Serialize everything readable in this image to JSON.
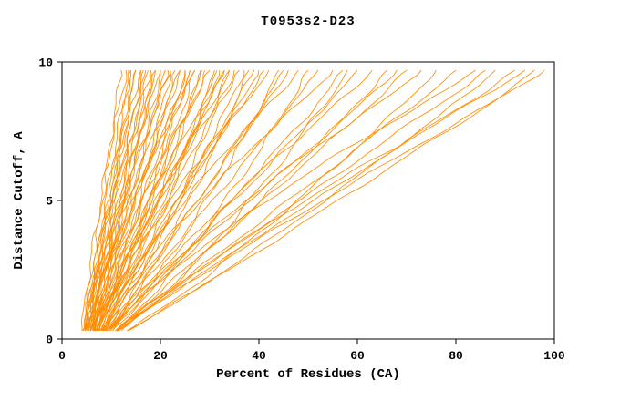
{
  "page": {
    "background": "#ffffff"
  },
  "chart_data": {
    "type": "line",
    "title": "T0953s2-D23",
    "xlabel": "Percent of Residues (CA)",
    "ylabel": "Distance Cutoff, A",
    "xlim": [
      0,
      100
    ],
    "ylim": [
      0,
      10
    ],
    "x_ticks": [
      0,
      20,
      40,
      60,
      80,
      100
    ],
    "y_ticks": [
      0,
      5,
      10
    ],
    "grid": false,
    "legend": "none",
    "line_color": "#ff8c00",
    "axis_color": "#000000",
    "description": "Per-model distance-cutoff curves: x = percent of CA residues within distance cutoff y",
    "y_levels": [
      0.3,
      1,
      2,
      3,
      4,
      5,
      6,
      7,
      8,
      9,
      9.7
    ],
    "curves": [
      [
        4.2,
        4.8,
        5.7,
        6.5,
        7.4,
        8.2,
        9.0,
        9.8,
        10.6,
        11.5,
        12
      ],
      [
        4.1,
        4.5,
        5.2,
        6.0,
        6.9,
        7.9,
        8.9,
        9.9,
        11.1,
        12.3,
        13
      ],
      [
        5.5,
        6.4,
        7.6,
        8.5,
        9.5,
        10.3,
        11.2,
        12.0,
        12.8,
        13.6,
        14
      ],
      [
        4.8,
        5.6,
        6.7,
        7.8,
        8.9,
        10.0,
        11.1,
        12.2,
        13.2,
        14.4,
        15
      ],
      [
        5.1,
        5.6,
        6.4,
        7.4,
        8.5,
        9.7,
        10.9,
        12.3,
        13.7,
        15.1,
        16
      ],
      [
        4.7,
        5.9,
        7.5,
        8.7,
        10.0,
        11.1,
        12.3,
        13.4,
        14.3,
        15.4,
        16
      ],
      [
        5.8,
        6.7,
        7.9,
        9.1,
        10.3,
        11.5,
        12.7,
        13.9,
        15.1,
        16.3,
        17
      ],
      [
        4.6,
        5.2,
        6.3,
        7.5,
        8.8,
        10.3,
        11.8,
        13.4,
        15.2,
        16.9,
        18
      ],
      [
        5.8,
        7.1,
        8.8,
        10.1,
        11.5,
        12.7,
        14.0,
        15.1,
        16.2,
        17.4,
        18
      ],
      [
        6.4,
        7.3,
        8.7,
        10.0,
        11.5,
        12.8,
        14.2,
        15.5,
        16.8,
        18.2,
        19
      ],
      [
        5.2,
        5.8,
        7.0,
        8.3,
        9.8,
        11.5,
        13.1,
        14.9,
        16.9,
        18.8,
        20
      ],
      [
        6.4,
        7.8,
        9.7,
        11.2,
        12.8,
        14.1,
        15.5,
        16.8,
        18.0,
        19.3,
        20
      ],
      [
        6.5,
        7.5,
        9.2,
        10.7,
        12.3,
        13.8,
        15.5,
        17.0,
        18.5,
        20.1,
        21
      ],
      [
        5.2,
        5.9,
        7.2,
        8.7,
        10.4,
        12.3,
        14.2,
        16.2,
        18.4,
        20.6,
        22
      ],
      [
        7.5,
        9.0,
        11.0,
        12.6,
        14.3,
        15.6,
        17.2,
        18.6,
        19.8,
        21.2,
        22
      ],
      [
        6.5,
        7.7,
        9.6,
        11.3,
        13.1,
        14.8,
        16.7,
        18.4,
        20.1,
        22.0,
        23
      ],
      [
        5.7,
        6.4,
        7.9,
        9.6,
        11.4,
        13.5,
        15.5,
        17.7,
        20.1,
        22.5,
        24
      ],
      [
        8.1,
        9.9,
        12.2,
        14.0,
        16.0,
        17.6,
        19.4,
        21.0,
        22.5,
        24.1,
        25
      ],
      [
        6.6,
        8.0,
        10.2,
        12.2,
        14.4,
        16.4,
        18.6,
        20.6,
        22.6,
        24.8,
        26
      ],
      [
        5.2,
        6.1,
        7.9,
        9.8,
        12.0,
        14.5,
        16.9,
        19.5,
        22.4,
        25.2,
        27
      ],
      [
        8.3,
        10.4,
        13.1,
        15.2,
        17.5,
        19.4,
        21.5,
        23.4,
        25.1,
        27.0,
        28
      ],
      [
        7.2,
        8.8,
        11.2,
        13.5,
        15.9,
        18.2,
        20.7,
        22.9,
        25.2,
        27.7,
        29
      ],
      [
        6.2,
        7.2,
        9.1,
        11.3,
        13.7,
        16.3,
        19.0,
        21.8,
        25.0,
        28.1,
        30
      ],
      [
        8.9,
        11.3,
        14.3,
        16.7,
        19.3,
        21.4,
        23.7,
        25.8,
        27.7,
        29.8,
        31
      ],
      [
        6.8,
        8.6,
        11.5,
        14.1,
        16.9,
        19.5,
        22.4,
        25.0,
        27.6,
        30.4,
        32
      ],
      [
        6.8,
        7.8,
        9.9,
        12.3,
        15.0,
        17.9,
        20.8,
        24.0,
        27.4,
        30.9,
        33
      ],
      [
        9.6,
        12.2,
        15.5,
        18.1,
        21.0,
        23.3,
        25.9,
        28.3,
        30.4,
        32.7,
        34
      ],
      [
        6.9,
        8.9,
        12.1,
        15.0,
        18.2,
        21.1,
        24.3,
        27.2,
        30.1,
        33.3,
        35
      ],
      [
        7.3,
        8.5,
        10.8,
        13.4,
        16.3,
        19.5,
        22.7,
        26.1,
        29.9,
        33.7,
        36
      ],
      [
        9.9,
        12.8,
        16.7,
        19.7,
        23.0,
        25.7,
        28.7,
        31.4,
        33.8,
        36.5,
        38
      ],
      [
        7.5,
        9.9,
        13.5,
        16.9,
        20.6,
        23.9,
        27.6,
        31.0,
        34.3,
        38.0,
        40
      ],
      [
        7.4,
        8.8,
        11.6,
        14.7,
        18.2,
        22.1,
        25.9,
        30.1,
        34.7,
        39.2,
        42
      ],
      [
        10.3,
        13.8,
        18.4,
        22.0,
        26.0,
        29.2,
        32.8,
        36.1,
        39.0,
        42.2,
        44
      ],
      [
        8.2,
        10.9,
        15.2,
        19.1,
        23.4,
        27.3,
        31.6,
        35.5,
        39.4,
        43.7,
        46
      ],
      [
        7.9,
        9.5,
        12.8,
        16.4,
        20.5,
        24.9,
        29.4,
        34.2,
        39.5,
        44.8,
        48
      ],
      [
        11.1,
        15.1,
        20.4,
        24.7,
        29.3,
        33.0,
        37.1,
        40.9,
        44.2,
        47.9,
        50
      ],
      [
        8.4,
        11.5,
        16.5,
        21.0,
        25.9,
        30.4,
        35.4,
        39.9,
        44.4,
        49.3,
        52
      ],
      [
        8.5,
        10.4,
        14.1,
        18.3,
        23.0,
        28.2,
        33.4,
        39.0,
        45.1,
        51.2,
        55
      ],
      [
        12.1,
        16.8,
        23.2,
        28.3,
        33.5,
        37.9,
        42.8,
        47.2,
        51.1,
        55.6,
        58
      ],
      [
        9.1,
        12.8,
        18.5,
        23.8,
        29.4,
        34.8,
        40.6,
        45.8,
        51.1,
        56.9,
        60
      ],
      [
        9.1,
        12.1,
        17.4,
        22.6,
        28.4,
        33.9,
        39.9,
        46.5,
        52.6,
        59.2,
        63
      ],
      [
        11.1,
        16.0,
        22.6,
        28.6,
        34.7,
        40.4,
        46.2,
        51.6,
        57.4,
        62.6,
        66
      ],
      [
        10.8,
        15.3,
        21.7,
        28.1,
        34.4,
        40.8,
        47.1,
        53.5,
        59.8,
        66.2,
        70
      ],
      [
        9.0,
        12.2,
        18.1,
        23.9,
        30.8,
        37.3,
        44.4,
        52.2,
        60.0,
        68.5,
        73
      ],
      [
        13.2,
        19.5,
        27.5,
        34.1,
        41.4,
        47.7,
        54.1,
        60.4,
        66.4,
        72.3,
        76
      ],
      [
        11.1,
        16.4,
        23.9,
        31.0,
        38.6,
        45.9,
        53.7,
        60.8,
        67.9,
        75.7,
        80
      ],
      [
        9.5,
        12.9,
        19.4,
        25.9,
        33.8,
        41.7,
        50.0,
        59.1,
        68.5,
        78.3,
        84
      ],
      [
        13.5,
        20.1,
        29.1,
        37.3,
        45.5,
        53.3,
        61.1,
        68.5,
        76.3,
        83.3,
        88
      ],
      [
        11.2,
        16.9,
        25.2,
        33.9,
        42.2,
        51.3,
        60.0,
        68.8,
        77.5,
        86.6,
        92
      ],
      [
        13.2,
        19.9,
        29.4,
        38.4,
        47.4,
        56.0,
        65.0,
        73.6,
        82.7,
        91.3,
        96
      ],
      [
        11.4,
        17.0,
        25.4,
        34.3,
        43.6,
        52.9,
        62.6,
        72.3,
        82.1,
        91.8,
        98
      ],
      [
        4.7,
        5.3,
        6.1,
        7.0,
        8.0,
        8.9,
        9.9,
        10.9,
        11.9,
        12.9,
        13.5
      ],
      [
        5.2,
        5.7,
        6.6,
        7.5,
        8.5,
        9.5,
        10.6,
        11.8,
        13.0,
        14.3,
        15
      ],
      [
        5.8,
        6.6,
        7.9,
        9.3,
        10.7,
        12.1,
        13.6,
        15.1,
        16.6,
        18.1,
        19
      ],
      [
        6.4,
        7.5,
        9.2,
        11.0,
        12.9,
        14.8,
        16.8,
        18.8,
        20.8,
        22.7,
        24
      ],
      [
        7.4,
        9.2,
        11.5,
        13.7,
        15.8,
        17.9,
        19.9,
        21.9,
        23.9,
        25.8,
        27
      ],
      [
        7.6,
        9.2,
        11.7,
        14.3,
        17.0,
        19.7,
        22.6,
        25.5,
        28.3,
        31.2,
        33
      ],
      [
        8.8,
        11.3,
        14.7,
        17.8,
        20.9,
        23.9,
        26.8,
        29.6,
        32.6,
        35.2,
        37
      ],
      [
        8.7,
        10.5,
        13.6,
        16.7,
        20.2,
        23.5,
        27.1,
        31.1,
        34.7,
        38.7,
        41
      ],
      [
        9.6,
        12.3,
        16.2,
        19.8,
        23.7,
        27.5,
        31.5,
        35.1,
        38.9,
        42.8,
        45
      ],
      [
        4.3,
        5.0,
        6.1,
        7.1,
        8.2,
        9.2,
        10.3,
        11.3,
        12.3,
        13.4,
        14
      ],
      [
        4.8,
        5.6,
        6.8,
        8.0,
        9.2,
        10.5,
        11.8,
        13.1,
        14.5,
        15.7,
        16.5
      ],
      [
        5.7,
        6.9,
        8.4,
        9.6,
        11.0,
        12.2,
        13.4,
        14.6,
        15.7,
        16.8,
        17.5
      ],
      [
        5.8,
        6.5,
        8.0,
        9.4,
        11.1,
        12.7,
        14.5,
        16.4,
        18.3,
        20.4,
        21.5
      ],
      [
        6.7,
        8.2,
        10.3,
        12.3,
        14.3,
        16.2,
        18.2,
        20.1,
        22.1,
        24.0,
        25
      ],
      [
        7.1,
        8.6,
        10.8,
        13.1,
        15.3,
        17.7,
        20.0,
        22.3,
        24.7,
        27.1,
        28.5
      ],
      [
        8.1,
        10.2,
        13.0,
        15.6,
        18.1,
        20.6,
        23.0,
        25.4,
        27.8,
        30.0,
        31.5
      ],
      [
        5.8,
        6.7,
        8.5,
        10.2,
        12.4,
        14.5,
        16.8,
        19.2,
        21.8,
        24.5,
        26
      ],
      [
        6.6,
        8.1,
        10.8,
        13.4,
        16.4,
        19.2,
        22.2,
        25.6,
        28.7,
        32.0,
        34
      ],
      [
        7.9,
        10.0,
        13.2,
        16.6,
        19.8,
        23.3,
        26.7,
        30.0,
        33.4,
        36.9,
        39
      ],
      [
        9.5,
        13.4,
        19.4,
        25.4,
        31.4,
        38.0,
        44.6,
        51.2,
        57.8,
        63.8,
        68
      ],
      [
        11.1,
        16.3,
        24.0,
        32.1,
        39.8,
        48.3,
        56.4,
        64.4,
        72.5,
        81.0,
        86
      ],
      [
        10.3,
        14.1,
        19.4,
        24.5,
        29.6,
        34.4,
        39.5,
        44.4,
        49.5,
        54.3,
        57
      ],
      [
        11.2,
        15.8,
        23.9,
        31.9,
        40.8,
        49.2,
        58.5,
        68.7,
        77.9,
        88.1,
        94
      ]
    ]
  }
}
